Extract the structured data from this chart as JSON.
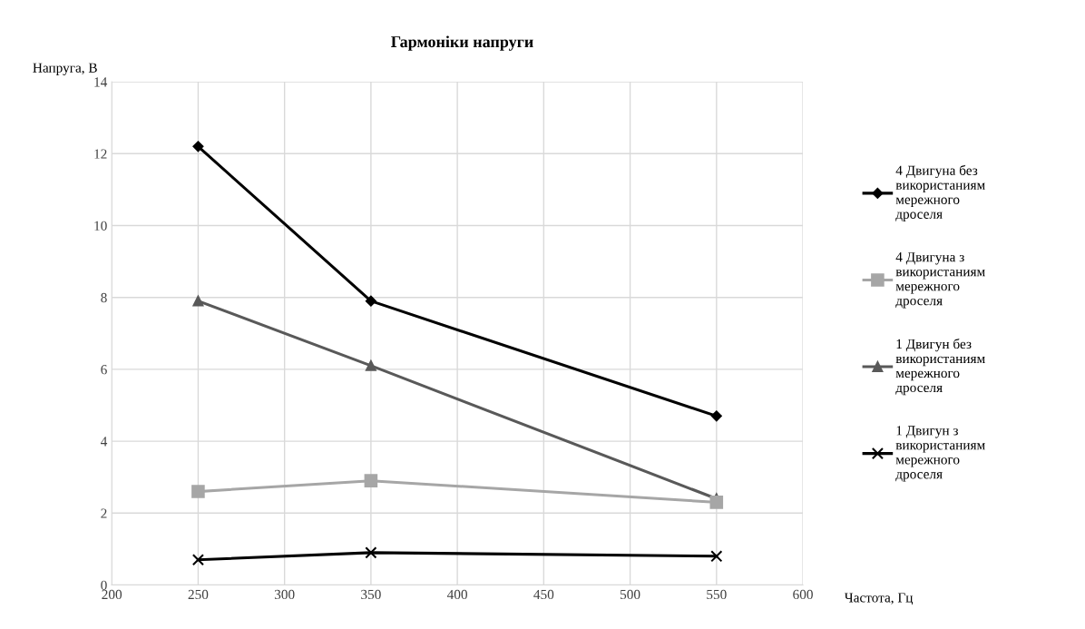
{
  "chart_data": {
    "type": "line",
    "title": "Гармоніки напруги",
    "xlabel": "Частота, Гц",
    "ylabel": "Напруга, В",
    "x": [
      250,
      350,
      550
    ],
    "series": [
      {
        "name": "4 Двигуна без використаниям мережного дроселя",
        "color": "#000000",
        "marker": "diamond",
        "values": [
          12.2,
          7.9,
          4.7
        ]
      },
      {
        "name": "4 Двигуна з використаниям мережного дроселя",
        "color": "#a6a6a6",
        "marker": "square",
        "values": [
          2.6,
          2.9,
          2.3
        ]
      },
      {
        "name": "1 Двигун без використаниям мережного дроселя",
        "color": "#595959",
        "marker": "triangle",
        "values": [
          7.9,
          6.1,
          2.4
        ]
      },
      {
        "name": "1 Двигун з використаниям мережного дроселя",
        "color": "#000000",
        "marker": "cross",
        "values": [
          0.7,
          0.9,
          0.8
        ]
      }
    ],
    "xlim": [
      200,
      600
    ],
    "xticks": [
      200,
      250,
      300,
      350,
      400,
      450,
      500,
      550,
      600
    ],
    "ylim": [
      0,
      14
    ],
    "yticks": [
      0,
      2,
      4,
      6,
      8,
      10,
      12,
      14
    ],
    "grid": true,
    "legend": "right",
    "line_style": "solid"
  }
}
